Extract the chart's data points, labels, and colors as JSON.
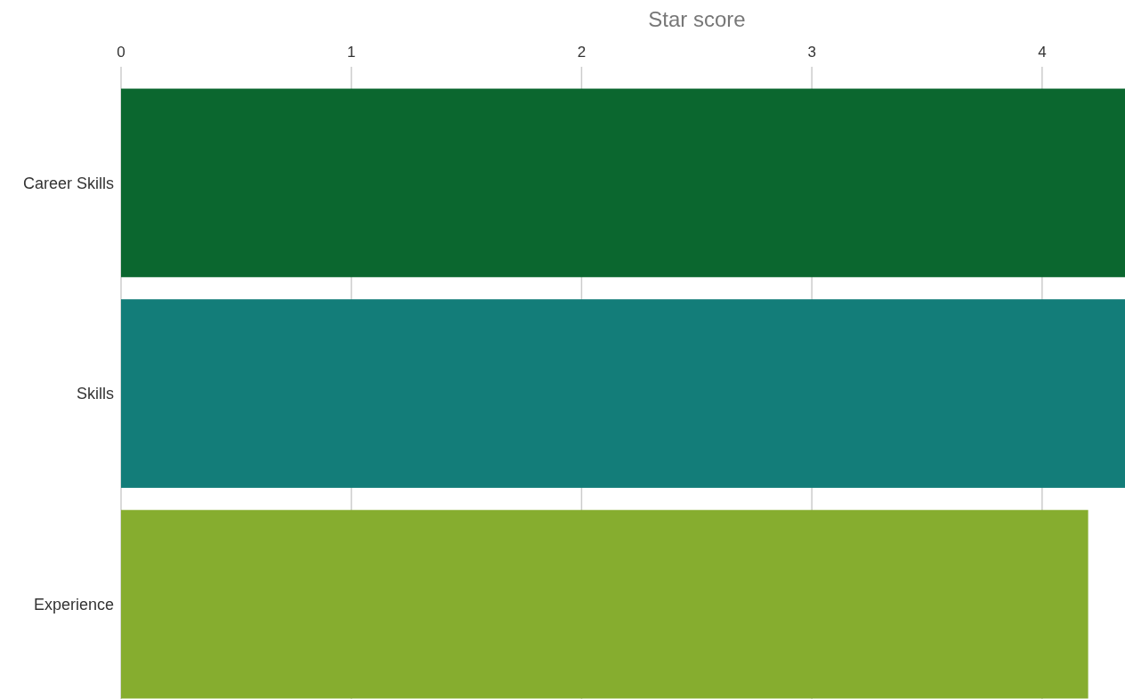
{
  "chart_data": {
    "type": "bar",
    "orientation": "horizontal",
    "xlabel": "Star score",
    "categories": [
      "Career Skills",
      "Skills",
      "Experience"
    ],
    "values": [
      4.36,
      4.36,
      4.2
    ],
    "colors": [
      "#0b672f",
      "#137d79",
      "#86ad2f"
    ],
    "xlim": [
      0,
      4.36
    ],
    "xticks": [
      0,
      1,
      2,
      3,
      4
    ],
    "grid": "x"
  }
}
